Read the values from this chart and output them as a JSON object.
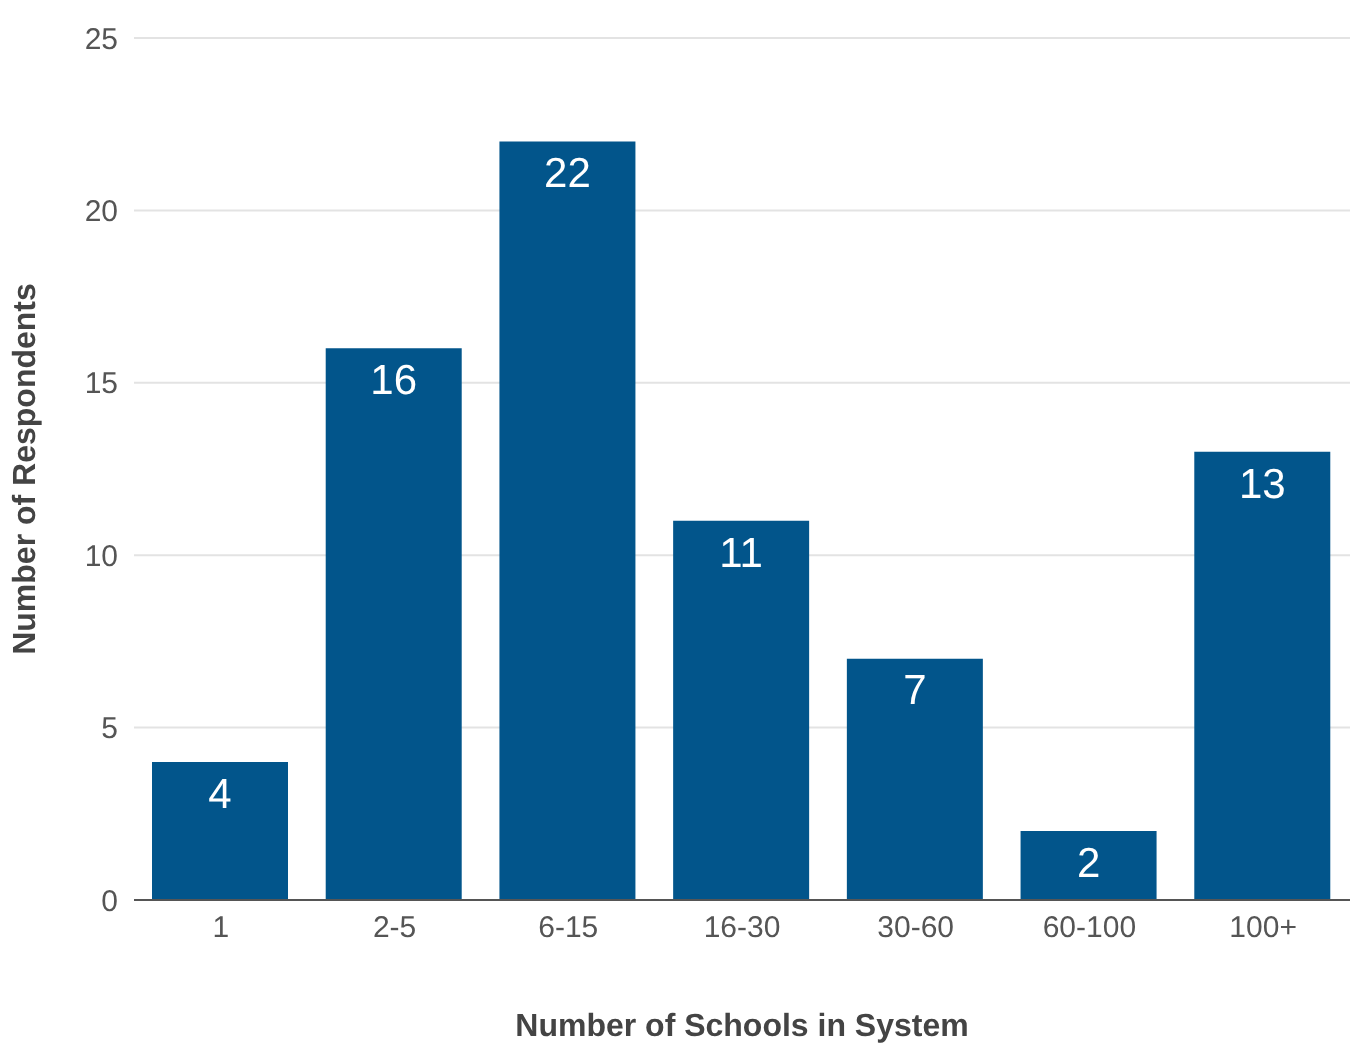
{
  "chart_data": {
    "type": "bar",
    "xlabel": "Number of Schools in System",
    "ylabel": "Number of Respondents",
    "categories": [
      "1",
      "2-5",
      "6-15",
      "16-30",
      "30-60",
      "60-100",
      "100+"
    ],
    "values": [
      4,
      16,
      22,
      11,
      7,
      2,
      13
    ],
    "color": "#02558b",
    "ylim": [
      0,
      25
    ],
    "yticks": [
      0,
      5,
      10,
      15,
      20,
      25
    ],
    "grid": "y",
    "data_labels": true
  }
}
